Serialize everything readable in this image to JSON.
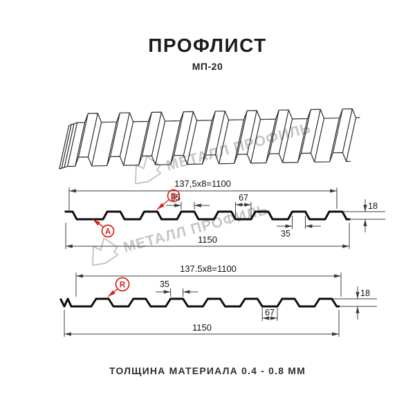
{
  "page": {
    "title": "ПРОФЛИСТ",
    "subtitle": "МП-20",
    "footer": "ТОЛЩИНА МАТЕРИАЛА 0.4 - 0.8 ММ"
  },
  "watermark": {
    "brand": "МЕТАЛЛ ПРОФИЛЬ"
  },
  "colors": {
    "accent_red": "#d3241a",
    "profile_line": "#0c0c0c",
    "dimension_line": "#3c3c3c",
    "watermark_gray": "#c6c6c6"
  },
  "profile_a": {
    "module_dim": "137,5x8=1100",
    "crest_width": "35",
    "valley_width": "67",
    "height": "18",
    "crest_width_bottom": "35",
    "overall_width": "1150",
    "labels": {
      "valley": "A",
      "crest": "B"
    }
  },
  "profile_r": {
    "module_dim": "137.5x8=1100",
    "crest_width": "35",
    "valley_width": "67",
    "height": "18",
    "overall_width": "1150",
    "labels": {
      "side": "R"
    }
  }
}
